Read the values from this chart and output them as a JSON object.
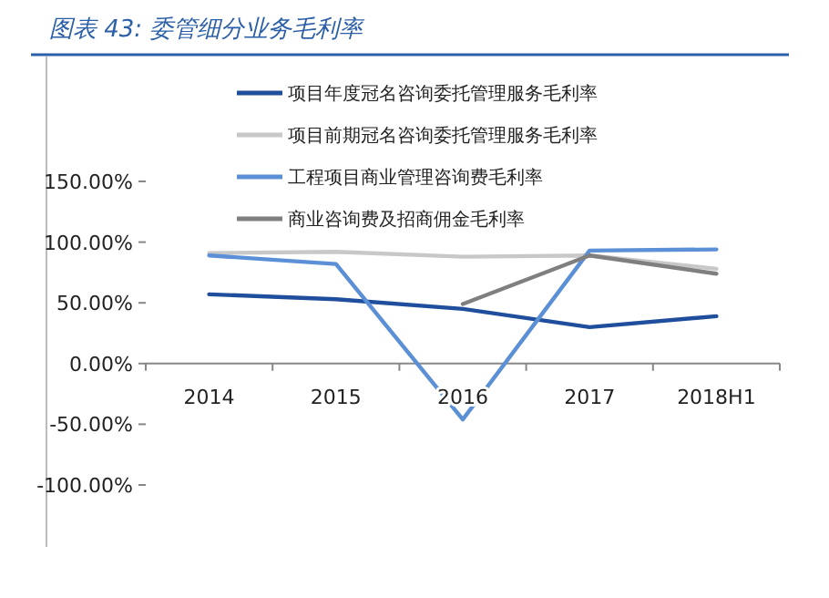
{
  "chart_data": {
    "type": "line",
    "title": "图表 43: 委管细分业务毛利率",
    "categories": [
      "2014",
      "2015",
      "2016",
      "2017",
      "2018H1"
    ],
    "series": [
      {
        "name": "项目年度冠名咨询委托管理服务毛利率",
        "color": "#1f4e9c",
        "values": [
          57,
          53,
          45,
          30,
          39
        ]
      },
      {
        "name": "项目前期冠名咨询委托管理服务毛利率",
        "color": "#c8c8c8",
        "values": [
          91,
          92,
          88,
          89,
          78
        ]
      },
      {
        "name": "工程项目商业管理咨询费毛利率",
        "color": "#5b8fd6",
        "values": [
          89,
          82,
          -46,
          93,
          94
        ]
      },
      {
        "name": "商业咨询费及招商佣金毛利率",
        "color": "#7f7f7f",
        "values": [
          null,
          null,
          49,
          89,
          74
        ]
      }
    ],
    "ylim": [
      -100,
      150
    ],
    "yticks": [
      {
        "value": -100,
        "label": "-100.00%"
      },
      {
        "value": -50,
        "label": "-50.00%"
      },
      {
        "value": 0,
        "label": "0.00%"
      },
      {
        "value": 50,
        "label": "50.00%"
      },
      {
        "value": 100,
        "label": "100.00%"
      },
      {
        "value": 150,
        "label": "150.00%"
      }
    ],
    "legend": "top"
  }
}
